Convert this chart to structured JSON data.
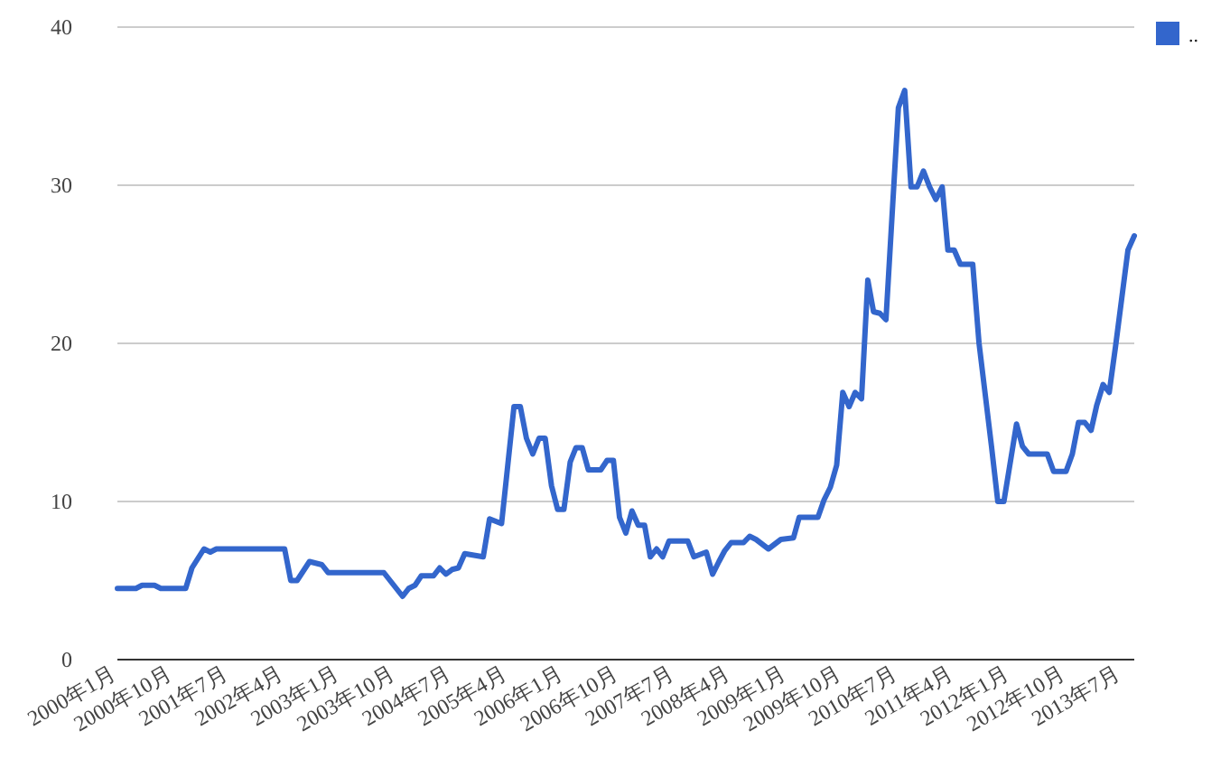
{
  "chart_data": {
    "type": "line",
    "x": [
      "2000-01",
      "2000-04",
      "2000-05",
      "2000-07",
      "2000-08",
      "2000-12",
      "2001-01",
      "2001-03",
      "2001-04",
      "2001-05",
      "2002-04",
      "2002-05",
      "2002-06",
      "2002-08",
      "2002-10",
      "2002-11",
      "2003-08",
      "2003-11",
      "2003-12",
      "2004-01",
      "2004-02",
      "2004-04",
      "2004-05",
      "2004-06",
      "2004-07",
      "2004-08",
      "2004-09",
      "2004-12",
      "2005-01",
      "2005-03",
      "2005-05",
      "2005-06",
      "2005-07",
      "2005-08",
      "2005-09",
      "2005-10",
      "2005-11",
      "2005-12",
      "2006-01",
      "2006-02",
      "2006-03",
      "2006-04",
      "2006-05",
      "2006-07",
      "2006-08",
      "2006-09",
      "2006-10",
      "2006-11",
      "2006-12",
      "2007-01",
      "2007-02",
      "2007-03",
      "2007-04",
      "2007-05",
      "2007-06",
      "2007-09",
      "2007-10",
      "2007-12",
      "2008-01",
      "2008-02",
      "2008-03",
      "2008-04",
      "2008-06",
      "2008-07",
      "2008-08",
      "2008-10",
      "2008-12",
      "2009-02",
      "2009-03",
      "2009-06",
      "2009-07",
      "2009-08",
      "2009-09",
      "2009-10",
      "2009-11",
      "2009-12",
      "2010-01",
      "2010-02",
      "2010-03",
      "2010-04",
      "2010-05",
      "2010-07",
      "2010-08",
      "2010-09",
      "2010-10",
      "2010-11",
      "2010-12",
      "2011-01",
      "2011-02",
      "2011-03",
      "2011-04",
      "2011-05",
      "2011-07",
      "2011-08",
      "2011-10",
      "2011-11",
      "2011-12",
      "2012-02",
      "2012-03",
      "2012-04",
      "2012-07",
      "2012-08",
      "2012-10",
      "2012-11",
      "2012-12",
      "2013-01",
      "2013-02",
      "2013-03",
      "2013-04",
      "2013-05",
      "2013-06",
      "2013-08",
      "2013-09"
    ],
    "series": [
      {
        "name": "..",
        "color": "#3366cc",
        "values": [
          4.5,
          4.5,
          4.7,
          4.7,
          4.5,
          4.5,
          5.8,
          7,
          6.8,
          7,
          7,
          5,
          5,
          6.2,
          6,
          5.5,
          5.5,
          4,
          4.5,
          4.7,
          5.3,
          5.3,
          5.8,
          5.4,
          5.7,
          5.8,
          6.7,
          6.5,
          8.9,
          8.6,
          16,
          16,
          14,
          13,
          14,
          14,
          11,
          9.5,
          9.5,
          12.5,
          13.4,
          13.4,
          12,
          12,
          12.6,
          12.6,
          9,
          8,
          9.4,
          8.5,
          8.5,
          6.5,
          7,
          6.5,
          7.5,
          7.5,
          6.5,
          6.8,
          5.4,
          6.2,
          6.9,
          7.4,
          7.4,
          7.8,
          7.6,
          7,
          7.6,
          7.7,
          9,
          9,
          10.1,
          10.9,
          12.3,
          16.9,
          16,
          16.9,
          16.5,
          24,
          22,
          21.9,
          21.5,
          34.9,
          36,
          29.9,
          29.9,
          30.9,
          29.9,
          29.1,
          29.9,
          25.9,
          25.9,
          25,
          25,
          20,
          13.5,
          10,
          10,
          14.9,
          13.5,
          13,
          13,
          11.9,
          11.9,
          13,
          15,
          15,
          14.5,
          16.1,
          17.4,
          16.9,
          19.8,
          25.9,
          26.8
        ]
      }
    ],
    "xlim": [
      "2000-01",
      "2013-09"
    ],
    "xticks": [
      {
        "value": "2000-01",
        "label": "2000年1月"
      },
      {
        "value": "2000-10",
        "label": "2000年10月"
      },
      {
        "value": "2001-07",
        "label": "2001年7月"
      },
      {
        "value": "2002-04",
        "label": "2002年4月"
      },
      {
        "value": "2003-01",
        "label": "2003年1月"
      },
      {
        "value": "2003-10",
        "label": "2003年10月"
      },
      {
        "value": "2004-07",
        "label": "2004年7月"
      },
      {
        "value": "2005-04",
        "label": "2005年4月"
      },
      {
        "value": "2006-01",
        "label": "2006年1月"
      },
      {
        "value": "2006-10",
        "label": "2006年10月"
      },
      {
        "value": "2007-07",
        "label": "2007年7月"
      },
      {
        "value": "2008-04",
        "label": "2008年4月"
      },
      {
        "value": "2009-01",
        "label": "2009年1月"
      },
      {
        "value": "2009-10",
        "label": "2009年10月"
      },
      {
        "value": "2010-07",
        "label": "2010年7月"
      },
      {
        "value": "2011-04",
        "label": "2011年4月"
      },
      {
        "value": "2012-01",
        "label": "2012年1月"
      },
      {
        "value": "2012-10",
        "label": "2012年10月"
      },
      {
        "value": "2013-07",
        "label": "2013年7月"
      }
    ],
    "ylim": [
      0,
      40
    ],
    "yticks": [
      0,
      10,
      20,
      30,
      40
    ],
    "grid": "y",
    "legend": "top right",
    "marker": "none",
    "line_style": "solid"
  }
}
